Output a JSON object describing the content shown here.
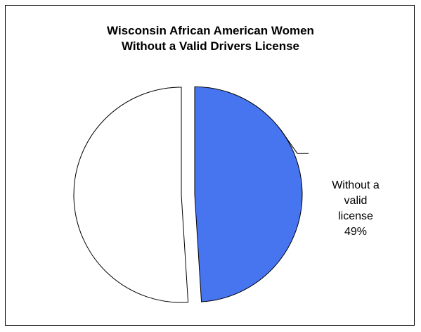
{
  "chart_data": {
    "type": "pie",
    "title_lines": [
      "Wisconsin African American Women",
      "Without a Valid Drivers License"
    ],
    "slices": [
      {
        "label_lines": [
          "Without a",
          "valid",
          "license",
          "49%"
        ],
        "value": 49,
        "color": "#4775F0",
        "exploded": true
      },
      {
        "label_lines": [],
        "value": 51,
        "color": "#FFFFFF",
        "exploded": false
      }
    ],
    "start_angle_deg": 0,
    "direction": "clockwise",
    "legend": "none"
  }
}
